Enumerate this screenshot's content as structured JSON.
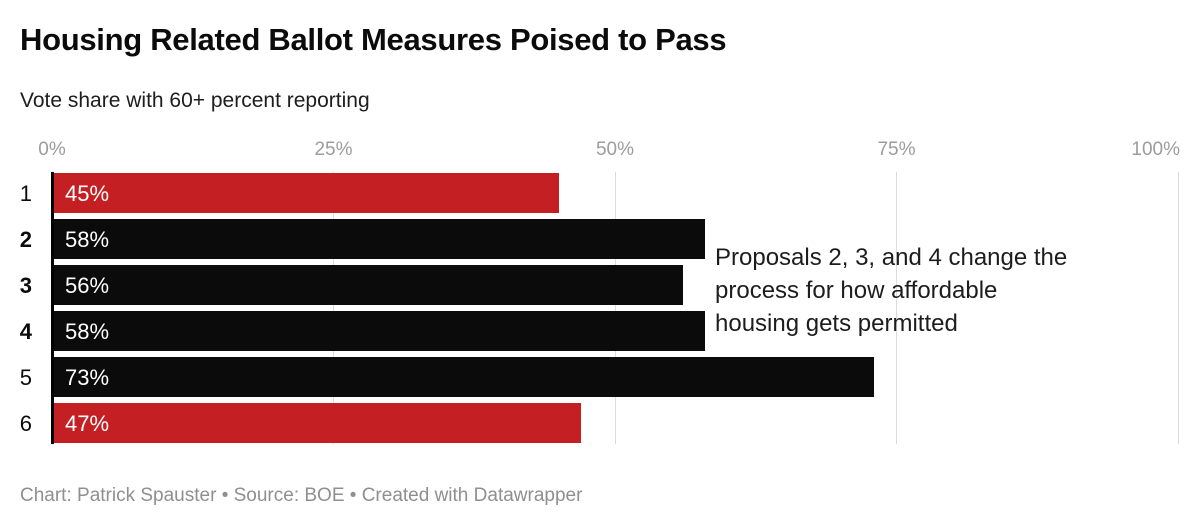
{
  "header": {
    "title": "Housing Related Ballot Measures Poised to Pass",
    "subtitle": "Vote share with 60+ percent reporting"
  },
  "chart_data": {
    "type": "bar",
    "orientation": "horizontal",
    "title": "Housing Related Ballot Measures Poised to Pass",
    "subtitle": "Vote share with 60+ percent reporting",
    "categories": [
      "1",
      "2",
      "3",
      "4",
      "5",
      "6"
    ],
    "values": [
      45,
      58,
      56,
      58,
      73,
      47
    ],
    "value_labels": [
      "45%",
      "58%",
      "56%",
      "58%",
      "73%",
      "47%"
    ],
    "bar_colors": [
      "#c42023",
      "#0b0b0b",
      "#0b0b0b",
      "#0b0b0b",
      "#0b0b0b",
      "#c42023"
    ],
    "bold_category_labels": [
      "2",
      "3",
      "4"
    ],
    "xlim": [
      0,
      100
    ],
    "x_ticks": [
      {
        "value": 0,
        "label": "0%"
      },
      {
        "value": 25,
        "label": "25%"
      },
      {
        "value": 50,
        "label": "50%"
      },
      {
        "value": 75,
        "label": "75%"
      },
      {
        "value": 100,
        "label": "100%"
      }
    ],
    "grid": true,
    "legend": false,
    "annotation": {
      "text": "Proposals 2, 3, and 4 change the\nprocess for how affordable\nhousing gets permitted"
    },
    "colors": {
      "accent_red": "#c42023",
      "bar_black": "#0b0b0b",
      "gridline": "#dcdcdc",
      "axis_line": "#000000",
      "tick_label": "#9c9c9c",
      "value_label": "#ffffff",
      "annotation_text": "#1d1d1d",
      "footer_text": "#8f8f8f"
    }
  },
  "footer": {
    "text": "Chart: Patrick Spauster • Source: BOE • Created with Datawrapper"
  }
}
